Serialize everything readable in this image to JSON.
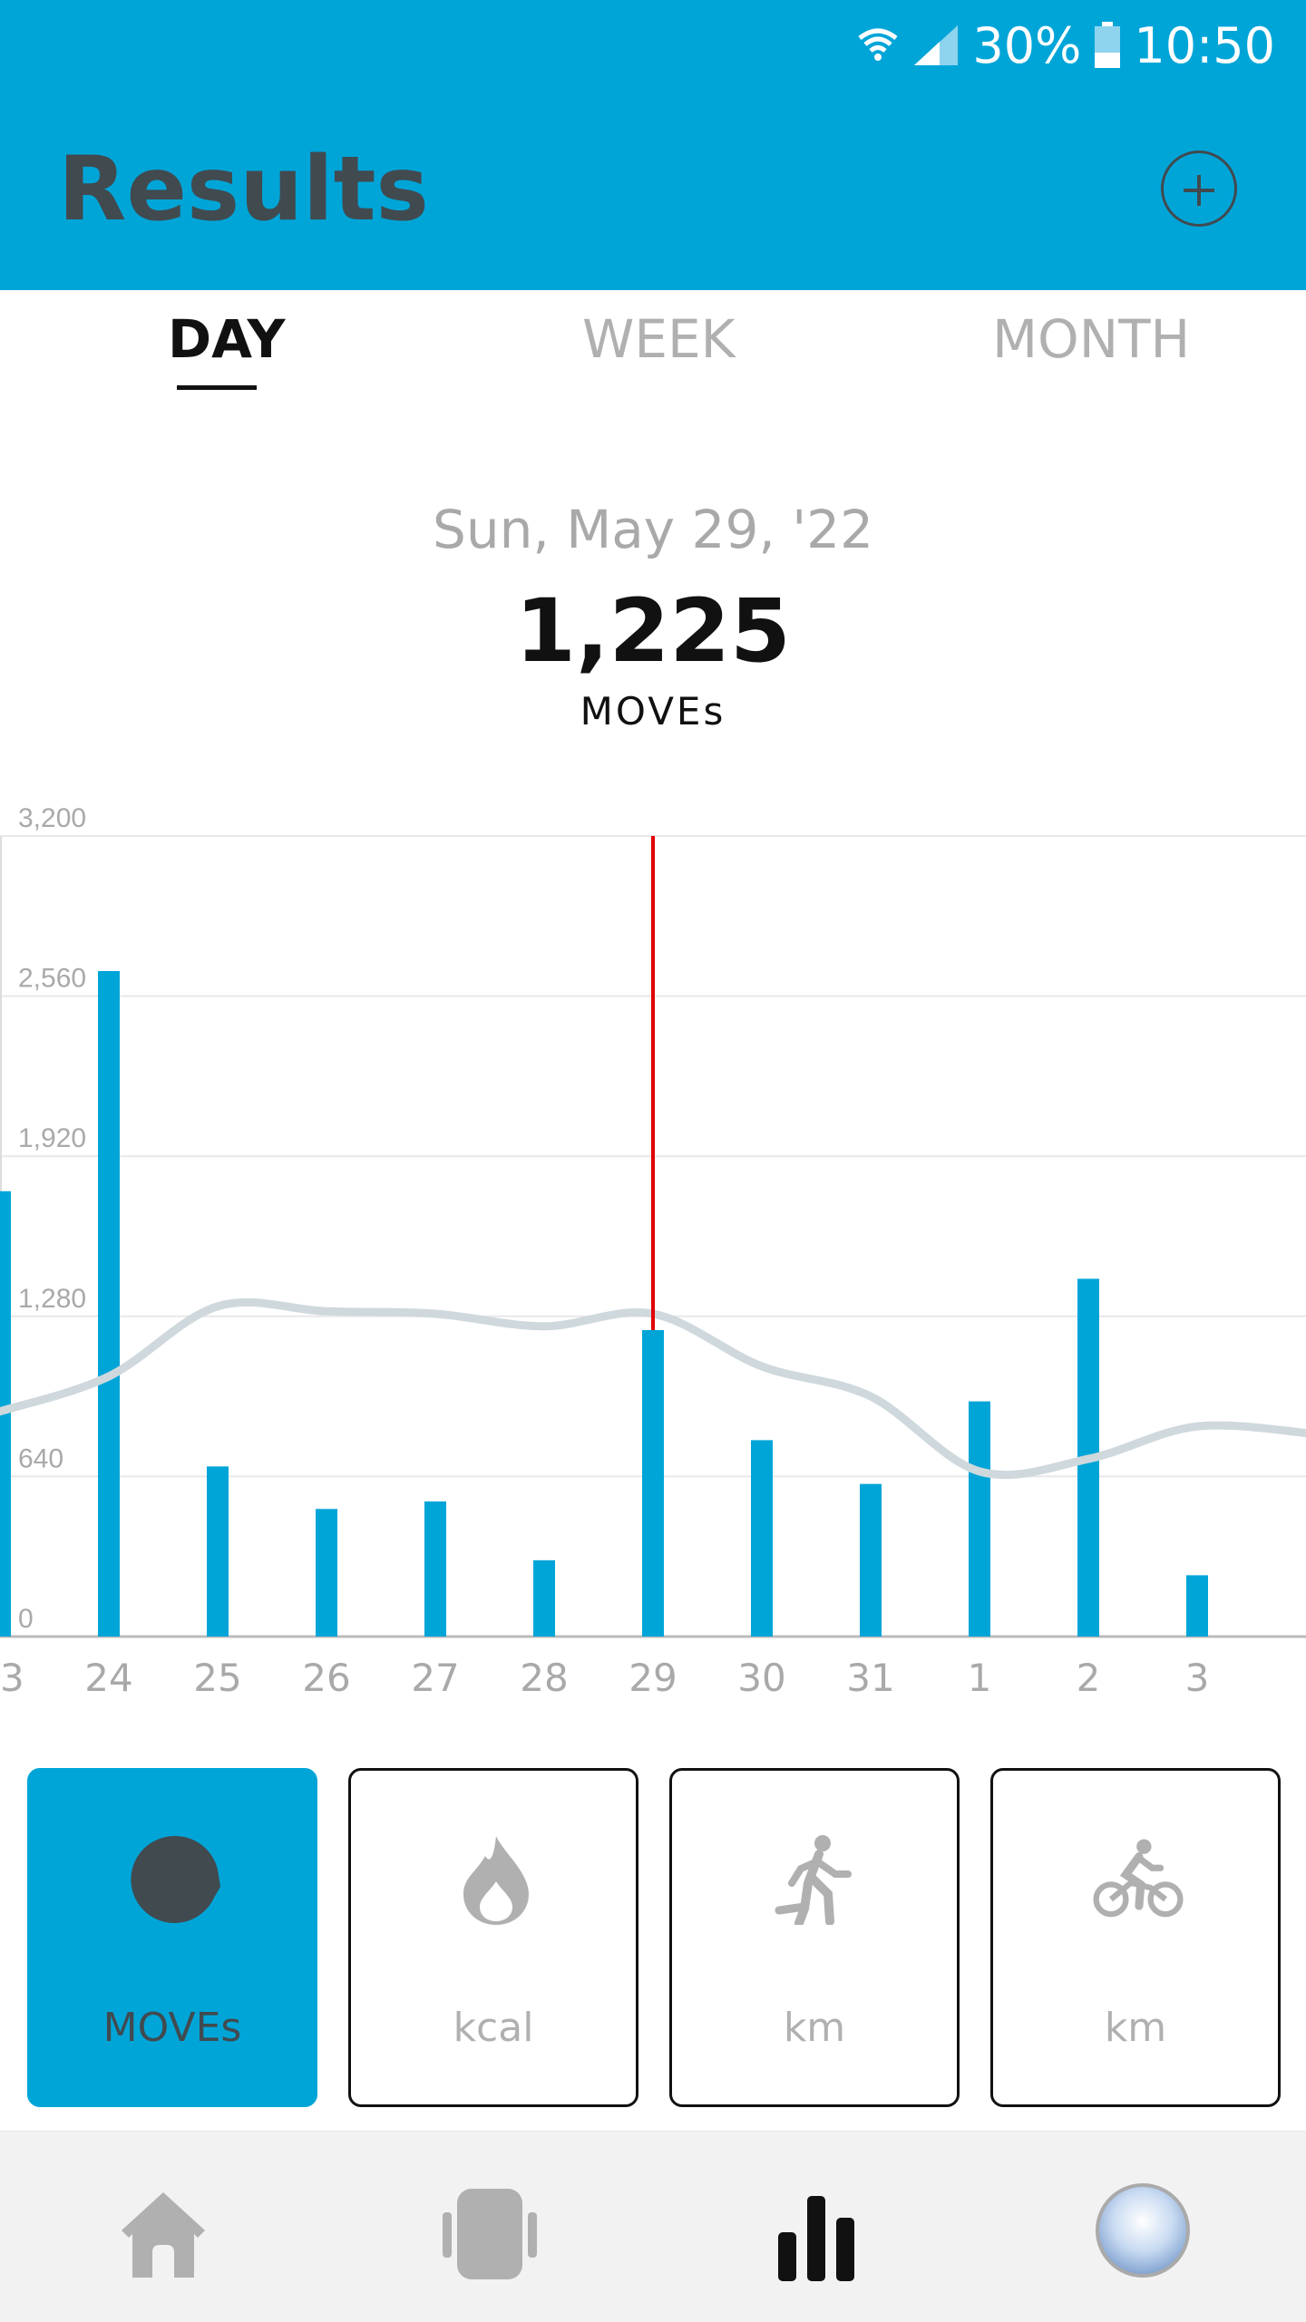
{
  "status_bar": {
    "battery": "30%",
    "time": "10:50"
  },
  "header": {
    "title": "Results"
  },
  "tabs": [
    {
      "label": "DAY",
      "active": true
    },
    {
      "label": "WEEK",
      "active": false
    },
    {
      "label": "MONTH",
      "active": false
    }
  ],
  "summary": {
    "date": "Sun, May 29, '22",
    "value": "1,225",
    "unit": "MOVEs"
  },
  "chart_data": {
    "type": "bar",
    "categories": [
      "23",
      "24",
      "25",
      "26",
      "27",
      "28",
      "29",
      "30",
      "31",
      "1",
      "2",
      "3"
    ],
    "values": [
      1780,
      2660,
      680,
      510,
      540,
      305,
      1225,
      785,
      610,
      940,
      1430,
      245
    ],
    "trend": [
      900,
      1040,
      1320,
      1300,
      1290,
      1240,
      1290,
      1080,
      960,
      660,
      710,
      840
    ],
    "y_ticks": [
      "0",
      "640",
      "1,280",
      "1,920",
      "2,560",
      "3,200"
    ],
    "ylim": [
      0,
      3200
    ],
    "selected_category": "29",
    "colors": {
      "bar": "#00a5d8",
      "trend": "#cfd8dc",
      "cursor": "#e00000",
      "grid": "#e8e8e8"
    }
  },
  "metrics": [
    {
      "icon": "moves-icon",
      "label": "MOVEs",
      "active": true
    },
    {
      "icon": "flame-icon",
      "label": "kcal",
      "active": false
    },
    {
      "icon": "walking-icon",
      "label": "km",
      "active": false
    },
    {
      "icon": "cycling-icon",
      "label": "km",
      "active": false
    }
  ],
  "bottom_nav": [
    {
      "icon": "home-icon",
      "active": false
    },
    {
      "icon": "device-icon",
      "active": false
    },
    {
      "icon": "bar-chart-icon",
      "active": true
    },
    {
      "icon": "profile-icon",
      "active": false
    }
  ]
}
